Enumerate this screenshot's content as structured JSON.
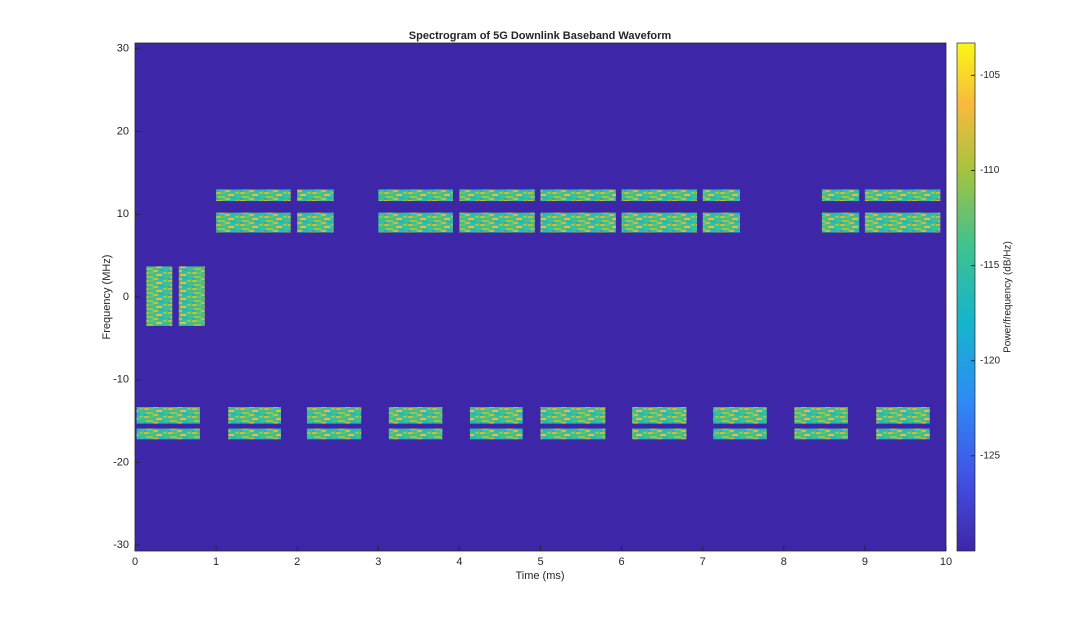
{
  "chart_data": {
    "type": "spectrogram",
    "title": "Spectrogram of 5G Downlink Baseband Waveform",
    "xlabel": "Time (ms)",
    "ylabel": "Frequency (MHz)",
    "colorbar_label": "Power/frequency (dB/Hz)",
    "xlim": [
      0,
      10
    ],
    "ylim": [
      -30.7,
      30.7
    ],
    "xticks": [
      0,
      1,
      2,
      3,
      4,
      5,
      6,
      7,
      8,
      9,
      10
    ],
    "yticks": [
      -30,
      -20,
      -10,
      0,
      10,
      20,
      30
    ],
    "clim": [
      -130,
      -103.3
    ],
    "cticks": [
      -125,
      -120,
      -115,
      -110,
      -105
    ],
    "background_color": "#3e26a8",
    "groups": [
      {
        "freq": [
          11.6,
          13.0
        ],
        "times": [
          [
            1.0,
            1.92
          ],
          [
            2.0,
            2.45
          ],
          [
            3.0,
            3.92
          ],
          [
            4.0,
            4.93
          ],
          [
            5.0,
            5.93
          ],
          [
            6.0,
            6.93
          ],
          [
            7.0,
            7.46
          ],
          [
            8.47,
            8.93
          ],
          [
            9.0,
            9.93
          ]
        ]
      },
      {
        "freq": [
          7.8,
          10.2
        ],
        "times": [
          [
            1.0,
            1.92
          ],
          [
            2.0,
            2.45
          ],
          [
            3.0,
            3.92
          ],
          [
            4.0,
            4.93
          ],
          [
            5.0,
            5.93
          ],
          [
            6.0,
            6.93
          ],
          [
            7.0,
            7.46
          ],
          [
            8.47,
            8.93
          ],
          [
            9.0,
            9.93
          ]
        ]
      },
      {
        "freq": [
          -3.5,
          3.7
        ],
        "times": [
          [
            0.14,
            0.46
          ],
          [
            0.54,
            0.86
          ]
        ]
      },
      {
        "freq": [
          -15.3,
          -13.3
        ],
        "times": [
          [
            0.02,
            0.8
          ],
          [
            1.15,
            1.8
          ],
          [
            2.12,
            2.79
          ],
          [
            3.13,
            3.79
          ],
          [
            4.13,
            4.78
          ],
          [
            5.0,
            5.8
          ],
          [
            6.13,
            6.8
          ],
          [
            7.13,
            7.79
          ],
          [
            8.13,
            8.79
          ],
          [
            9.14,
            9.8
          ]
        ]
      },
      {
        "freq": [
          -17.2,
          -15.9
        ],
        "times": [
          [
            0.02,
            0.8
          ],
          [
            1.15,
            1.8
          ],
          [
            2.12,
            2.79
          ],
          [
            3.13,
            3.79
          ],
          [
            4.13,
            4.78
          ],
          [
            5.0,
            5.8
          ],
          [
            6.13,
            6.8
          ],
          [
            7.13,
            7.79
          ],
          [
            8.13,
            8.79
          ],
          [
            9.14,
            9.8
          ]
        ]
      }
    ]
  }
}
